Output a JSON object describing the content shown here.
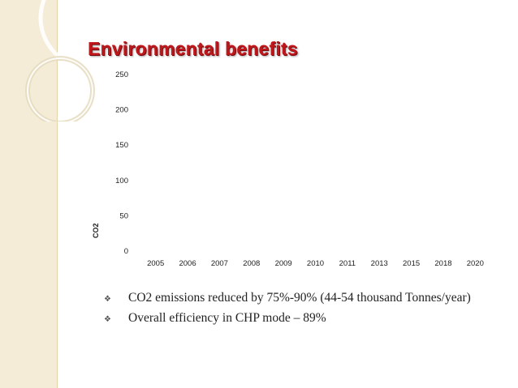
{
  "slide": {
    "title": "Environmental benefits",
    "accent_color": "#c0171c"
  },
  "chart_data": {
    "type": "bar",
    "title": "",
    "xlabel": "",
    "ylabel": "CO2",
    "categories": [
      "2005",
      "2006",
      "2007",
      "2008",
      "2009",
      "2010",
      "2011",
      "2013",
      "2015",
      "2018",
      "2020"
    ],
    "values": [
      0,
      0,
      0,
      0,
      0,
      0,
      0,
      0,
      0,
      0,
      0
    ],
    "ylim": [
      0,
      250
    ],
    "yticks": [
      0,
      50,
      100,
      150,
      200,
      250
    ],
    "grid": false,
    "legend": "none"
  },
  "bullets": [
    {
      "icon": "diamond-bullet-icon",
      "text": "CO2 emissions reduced by 75%-90% (44-54 thousand Tonnes/year)"
    },
    {
      "icon": "diamond-bullet-icon",
      "text": "Overall efficiency in CHP mode – 89%"
    }
  ]
}
